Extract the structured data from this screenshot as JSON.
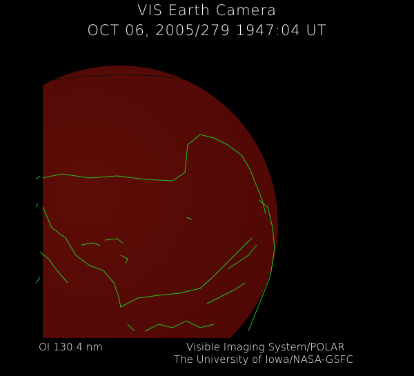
{
  "header": {
    "title": "VIS Earth Camera",
    "timestamp": "OCT 06, 2005/279 1947:04 UT"
  },
  "footer": {
    "wavelength": "OI  130.4 nm",
    "credit_line1": "Visible Imaging System/POLAR",
    "credit_line2": "The University of Iowa/NASA-GSFC"
  },
  "image": {
    "disk_color": "#5a0a06",
    "coastline_color": "#22c822",
    "background_color": "#000000"
  }
}
